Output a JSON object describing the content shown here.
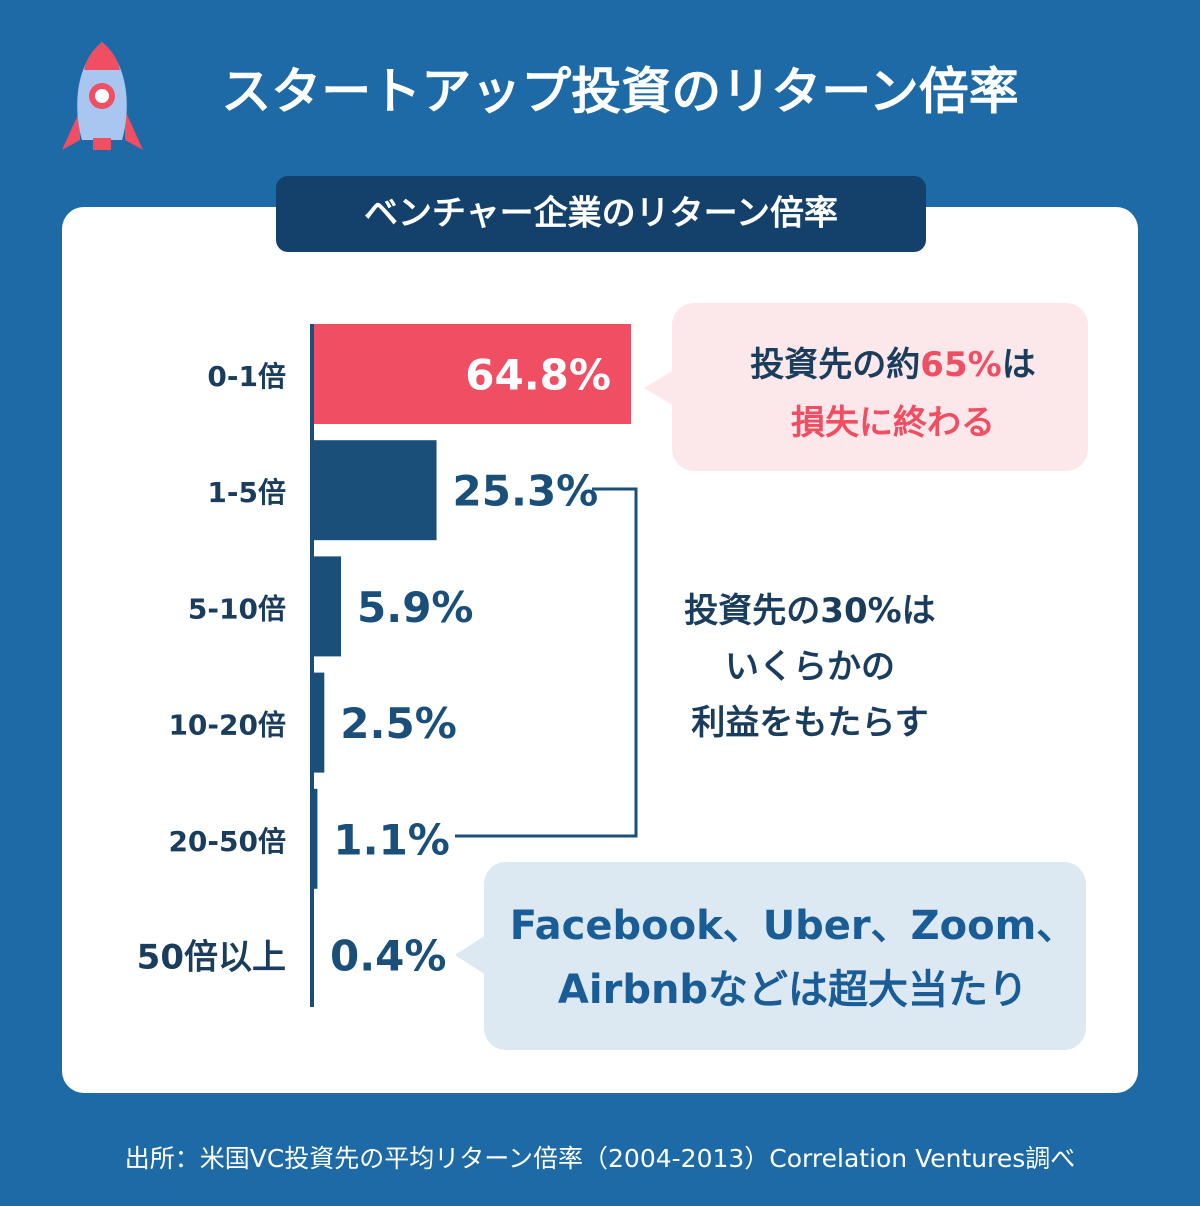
{
  "chart_data": {
    "type": "bar",
    "orientation": "horizontal",
    "title": "スタートアップ投資のリターン倍率",
    "subtitle": "ベンチャー企業のリターン倍率",
    "categories": [
      "0-1倍",
      "1-5倍",
      "5-10倍",
      "10-20倍",
      "20-50倍",
      "50倍以上"
    ],
    "values": [
      64.8,
      25.3,
      5.9,
      2.5,
      1.1,
      0.4
    ],
    "value_labels": [
      "64.8%",
      "25.3%",
      "5.9%",
      "2.5%",
      "1.1%",
      "0.4%"
    ],
    "colors": [
      "#f04e63",
      "#1a4f7a",
      "#1a4f7a",
      "#1a4f7a",
      "#1a4f7a",
      "#1a4f7a"
    ],
    "annotations": [
      {
        "lines": [
          [
            {
              "text": "投資先の約"
            },
            {
              "text": "65%",
              "color": "#f04e63"
            },
            {
              "text": "は"
            }
          ],
          [
            {
              "text": "損失に終わる",
              "color": "#f04e63"
            }
          ]
        ]
      },
      {
        "lines": [
          [
            {
              "text": "投資先の30%は"
            }
          ],
          [
            {
              "text": "いくらかの"
            }
          ],
          [
            {
              "text": "利益をもたらす"
            }
          ]
        ]
      },
      {
        "lines": [
          [
            {
              "text": "Facebook、Uber、Zoom、"
            }
          ],
          [
            {
              "text": "Airbnbなどは超大当たり"
            }
          ]
        ]
      }
    ],
    "source": "出所：米国VC投資先の平均リターン倍率（2004-2013）Correlation Ventures調べ"
  }
}
